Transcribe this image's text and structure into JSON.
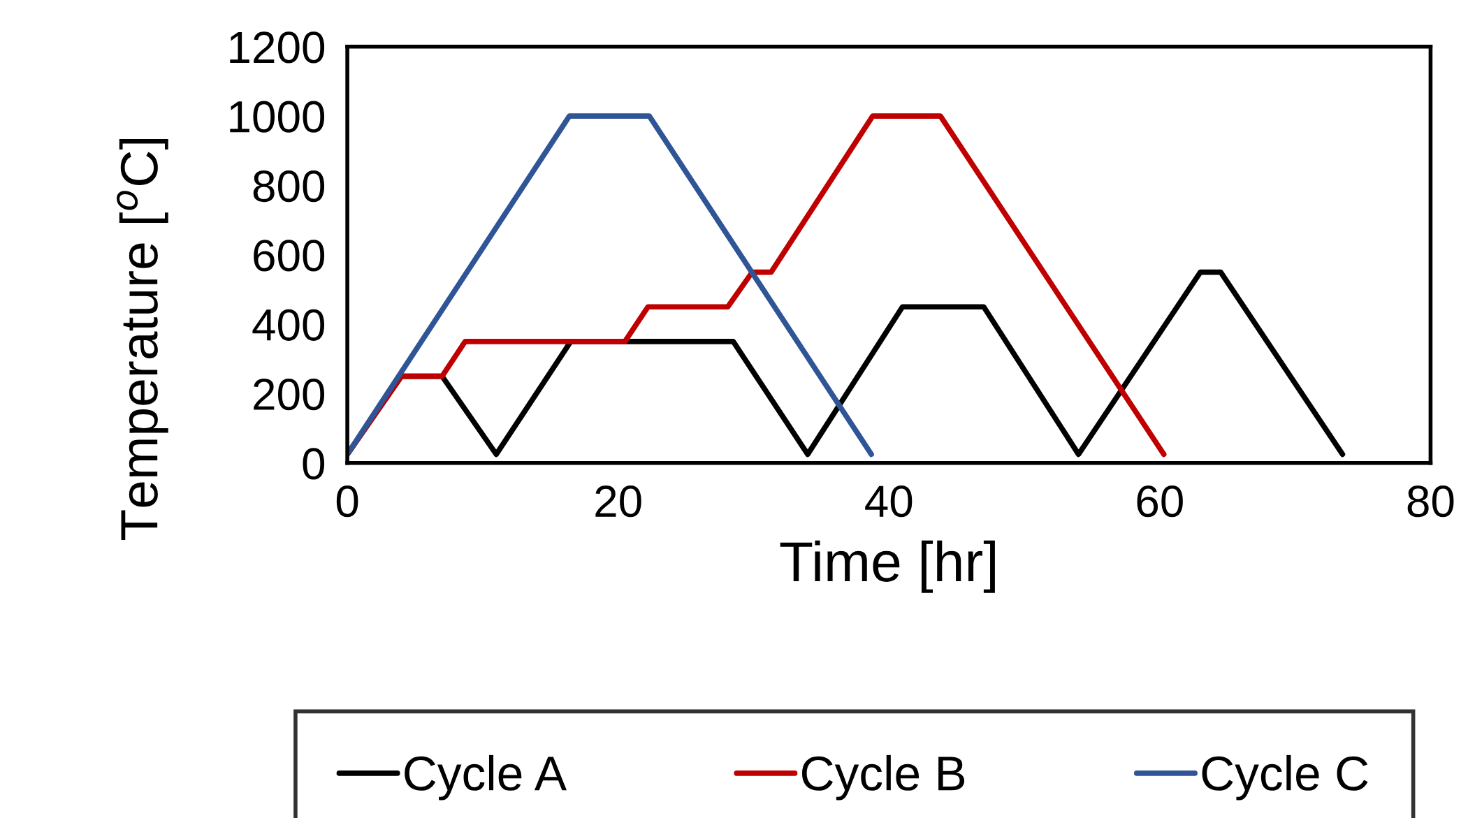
{
  "chart_data": {
    "type": "line",
    "xlabel": "Time [hr]",
    "ylabel": "Temperature [$^{o}$C]",
    "xlim": [
      0,
      80
    ],
    "xticks": [
      0,
      20,
      40,
      60,
      80
    ],
    "ylim": [
      0,
      1200
    ],
    "yticks": [
      0,
      200,
      400,
      600,
      800,
      1000,
      1200
    ],
    "grid": false,
    "legend": "bottom",
    "marker": "none",
    "line_style": "solid",
    "series": [
      {
        "name": "Cycle A",
        "color": "#000000",
        "x": [
          0,
          4,
          7,
          11,
          16.5,
          28.5,
          34,
          41,
          47,
          54,
          63,
          64.5,
          73.5
        ],
        "values": [
          25,
          250,
          250,
          25,
          350,
          350,
          25,
          450,
          450,
          25,
          550,
          550,
          25
        ]
      },
      {
        "name": "Cycle B",
        "color": "#c00000",
        "x": [
          0,
          4,
          7,
          8.7,
          20.5,
          22.2,
          28.1,
          29.9,
          31.3,
          38.8,
          43.8,
          60.3
        ],
        "values": [
          25,
          250,
          250,
          350,
          350,
          450,
          450,
          550,
          550,
          1000,
          1000,
          25
        ]
      },
      {
        "name": "Cycle C",
        "color": "#2f5597",
        "x": [
          0,
          16.4,
          22.3,
          38.7
        ],
        "values": [
          25,
          1000,
          1000,
          25
        ]
      }
    ]
  }
}
